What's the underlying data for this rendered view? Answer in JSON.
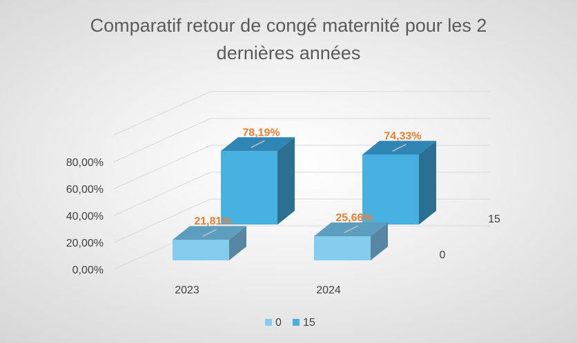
{
  "chart_data": {
    "type": "bar",
    "variant": "3d-column",
    "title": "Comparatif retour de congé maternité pour les 2 dernières années",
    "title_lines": [
      "Comparatif retour de congé maternité pour les 2",
      "dernières années"
    ],
    "categories": [
      "2023",
      "2024"
    ],
    "series": [
      {
        "name": "0",
        "values": [
          21.81,
          25.66
        ],
        "labels": [
          "21,81%",
          "25,66%"
        ]
      },
      {
        "name": "15",
        "values": [
          78.19,
          74.33
        ],
        "labels": [
          "78,19%",
          "74,33%"
        ]
      }
    ],
    "yticks": [
      "0,00%",
      "20,00%",
      "40,00%",
      "60,00%",
      "80,00%"
    ],
    "ylim": [
      0,
      100
    ],
    "depth_axis_labels": [
      "0",
      "15"
    ],
    "legend": {
      "position": "bottom",
      "entries": [
        "0",
        "15"
      ]
    },
    "colors": {
      "series0": {
        "front": "#84ccee",
        "top": "#5d9ebe",
        "side": "#5686a1"
      },
      "series1": {
        "front": "#46b1e1",
        "top": "#2f86b4",
        "side": "#2b6f91"
      },
      "gridline": "#d9d9d9",
      "data_label": "#ed7d31"
    }
  }
}
